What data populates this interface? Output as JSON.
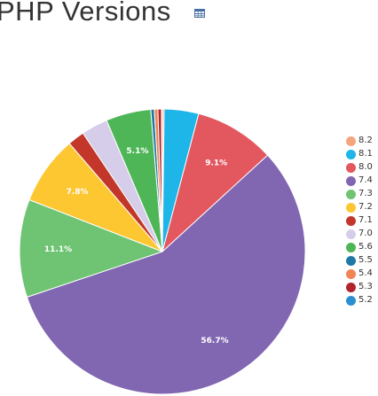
{
  "chart_data": {
    "type": "pie",
    "title": "PHP Versions",
    "legend_position": "right",
    "slices": [
      {
        "name": "8.2",
        "value": 0.2,
        "color": "#f5a57e",
        "label": ""
      },
      {
        "name": "8.1",
        "value": 3.9,
        "color": "#1eb5e8",
        "label": ""
      },
      {
        "name": "8.0",
        "value": 9.1,
        "color": "#e3575f",
        "label": "9.1%"
      },
      {
        "name": "7.4",
        "value": 56.7,
        "color": "#8166b1",
        "label": "56.7%"
      },
      {
        "name": "7.3",
        "value": 11.1,
        "color": "#6ec473",
        "label": "11.1%"
      },
      {
        "name": "7.2",
        "value": 7.8,
        "color": "#fdc732",
        "label": "7.8%"
      },
      {
        "name": "7.1",
        "value": 1.9,
        "color": "#c2372a",
        "label": ""
      },
      {
        "name": "7.0",
        "value": 3.0,
        "color": "#d5cdea",
        "label": ""
      },
      {
        "name": "5.6",
        "value": 5.1,
        "color": "#4fb658",
        "label": "5.1%"
      },
      {
        "name": "5.5",
        "value": 0.4,
        "color": "#1f79a8",
        "label": ""
      },
      {
        "name": "5.4",
        "value": 0.4,
        "color": "#f08454",
        "label": ""
      },
      {
        "name": "5.3",
        "value": 0.4,
        "color": "#b2232a",
        "label": ""
      },
      {
        "name": "5.2",
        "value": 0.1,
        "color": "#2a8fd0",
        "label": ""
      }
    ]
  },
  "icons": {
    "table_toggle": "table-icon"
  },
  "colors": {
    "title": "#333333",
    "slice_border": "#ffffff",
    "slice_label": "#ffffff",
    "icon": "#4a6fa5"
  }
}
